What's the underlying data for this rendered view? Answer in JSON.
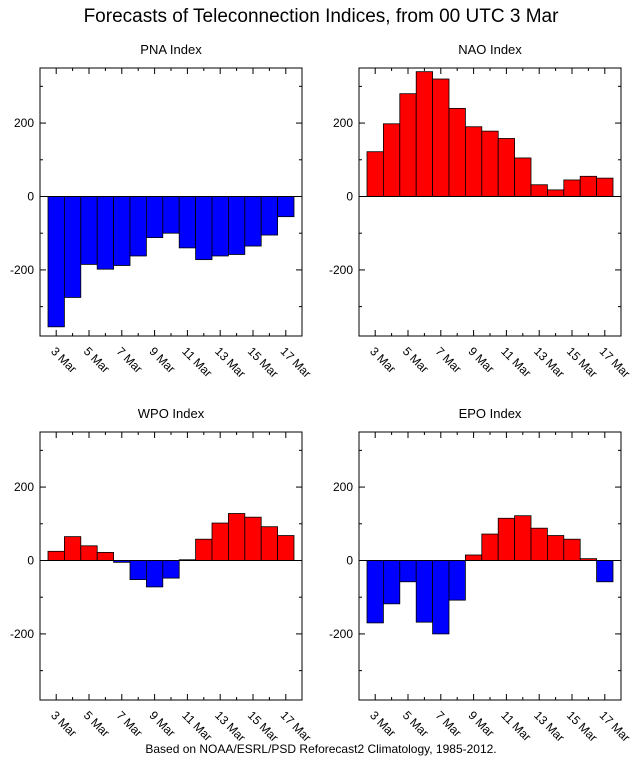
{
  "title": "Forecasts of Teleconnection Indices, from 00 UTC 3 Mar",
  "footer": "Based on NOAA/ESRL/PSD Reforecast2 Climatology, 1985-2012.",
  "colors": {
    "positive": "#ff0000",
    "negative": "#0000ff",
    "outline": "#000000"
  },
  "chart_data": [
    {
      "type": "bar",
      "title": "PNA Index",
      "x": [
        "3 Mar",
        "4 Mar",
        "5 Mar",
        "6 Mar",
        "7 Mar",
        "8 Mar",
        "9 Mar",
        "10 Mar",
        "11 Mar",
        "12 Mar",
        "13 Mar",
        "14 Mar",
        "15 Mar",
        "16 Mar",
        "17 Mar"
      ],
      "values": [
        -355,
        -275,
        -185,
        -198,
        -188,
        -162,
        -112,
        -100,
        -140,
        -172,
        -162,
        -158,
        -135,
        -105,
        -55
      ],
      "ylim": [
        -380,
        350
      ],
      "yticks": [
        "200",
        "0",
        "-200"
      ],
      "xtick_labels": [
        "3 Mar",
        "5 Mar",
        "7 Mar",
        "9 Mar",
        "11 Mar",
        "13 Mar",
        "15 Mar",
        "17 Mar"
      ]
    },
    {
      "type": "bar",
      "title": "NAO Index",
      "x": [
        "3 Mar",
        "4 Mar",
        "5 Mar",
        "6 Mar",
        "7 Mar",
        "8 Mar",
        "9 Mar",
        "10 Mar",
        "11 Mar",
        "12 Mar",
        "13 Mar",
        "14 Mar",
        "15 Mar",
        "16 Mar",
        "17 Mar"
      ],
      "values": [
        122,
        198,
        280,
        340,
        320,
        240,
        190,
        178,
        158,
        105,
        32,
        18,
        45,
        55,
        50
      ],
      "ylim": [
        -380,
        350
      ],
      "yticks": [
        "200",
        "0",
        "-200"
      ],
      "xtick_labels": [
        "3 Mar",
        "5 Mar",
        "7 Mar",
        "9 Mar",
        "11 Mar",
        "13 Mar",
        "15 Mar",
        "17 Mar"
      ]
    },
    {
      "type": "bar",
      "title": "WPO Index",
      "x": [
        "3 Mar",
        "4 Mar",
        "5 Mar",
        "6 Mar",
        "7 Mar",
        "8 Mar",
        "9 Mar",
        "10 Mar",
        "11 Mar",
        "12 Mar",
        "13 Mar",
        "14 Mar",
        "15 Mar",
        "16 Mar",
        "17 Mar"
      ],
      "values": [
        25,
        65,
        40,
        22,
        -5,
        -52,
        -72,
        -48,
        2,
        58,
        102,
        128,
        118,
        92,
        68
      ],
      "ylim": [
        -380,
        350
      ],
      "yticks": [
        "200",
        "0",
        "-200"
      ],
      "xtick_labels": [
        "3 Mar",
        "5 Mar",
        "7 Mar",
        "9 Mar",
        "11 Mar",
        "13 Mar",
        "15 Mar",
        "17 Mar"
      ]
    },
    {
      "type": "bar",
      "title": "EPO Index",
      "x": [
        "3 Mar",
        "4 Mar",
        "5 Mar",
        "6 Mar",
        "7 Mar",
        "8 Mar",
        "9 Mar",
        "10 Mar",
        "11 Mar",
        "12 Mar",
        "13 Mar",
        "14 Mar",
        "15 Mar",
        "16 Mar",
        "17 Mar"
      ],
      "values": [
        -170,
        -118,
        -58,
        -168,
        -200,
        -108,
        15,
        72,
        115,
        122,
        88,
        68,
        58,
        5,
        -58
      ],
      "ylim": [
        -380,
        350
      ],
      "yticks": [
        "200",
        "0",
        "-200"
      ],
      "xtick_labels": [
        "3 Mar",
        "5 Mar",
        "7 Mar",
        "9 Mar",
        "11 Mar",
        "13 Mar",
        "15 Mar",
        "17 Mar"
      ]
    }
  ]
}
